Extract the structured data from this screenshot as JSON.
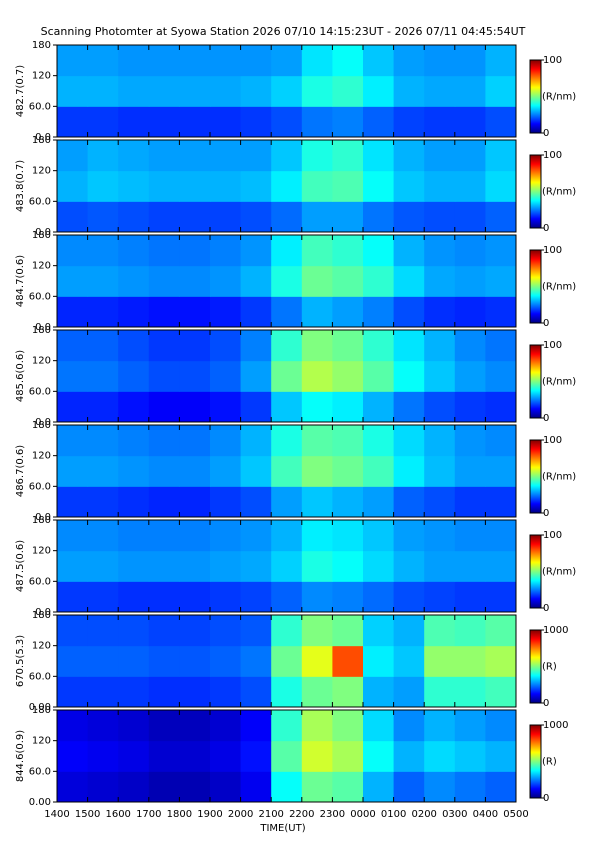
{
  "title": "Scanning Photomter at Syowa Station 2026 07/10 14:15:23UT - 2026 07/11 04:45:54UT",
  "xlabel": "TIME(UT)",
  "xlim": [
    14,
    29
  ],
  "x_bins": [
    14,
    15,
    16,
    17,
    18,
    19,
    20,
    21,
    22,
    23,
    24,
    25,
    26,
    27,
    28,
    29
  ],
  "xticks": [
    {
      "value": 14,
      "label": "1400"
    },
    {
      "value": 15,
      "label": "1500"
    },
    {
      "value": 16,
      "label": "1600"
    },
    {
      "value": 17,
      "label": "1700"
    },
    {
      "value": 18,
      "label": "1800"
    },
    {
      "value": 19,
      "label": "1900"
    },
    {
      "value": 20,
      "label": "2000"
    },
    {
      "value": 21,
      "label": "2100"
    },
    {
      "value": 22,
      "label": "2200"
    },
    {
      "value": 23,
      "label": "2300"
    },
    {
      "value": 24,
      "label": "0000"
    },
    {
      "value": 25,
      "label": "0100"
    },
    {
      "value": 26,
      "label": "0200"
    },
    {
      "value": 27,
      "label": "0300"
    },
    {
      "value": 28,
      "label": "0400"
    },
    {
      "value": 29,
      "label": "0500"
    }
  ],
  "chart_data": [
    {
      "type": "heatmap",
      "ylabel": "482.7(0.7)",
      "ylim": [
        0,
        180
      ],
      "y_bins": [
        0,
        60,
        120,
        180
      ],
      "yticks": [
        {
          "value": 0,
          "label": "0.0"
        },
        {
          "value": 60,
          "label": "60.0"
        },
        120,
        180
      ],
      "clim": [
        0,
        100
      ],
      "cticks": [
        0,
        100
      ],
      "cbar_label": "(R/nm)",
      "values": [
        [
          18,
          18,
          17,
          17,
          17,
          17,
          18,
          20,
          24,
          25,
          22,
          19,
          18,
          18,
          20
        ],
        [
          30,
          30,
          29,
          29,
          29,
          29,
          30,
          33,
          40,
          42,
          36,
          30,
          29,
          29,
          33
        ],
        [
          28,
          28,
          27,
          27,
          27,
          27,
          27,
          28,
          35,
          38,
          32,
          28,
          27,
          27,
          30
        ]
      ]
    },
    {
      "type": "heatmap",
      "ylabel": "483.8(0.7)",
      "ylim": [
        0,
        180
      ],
      "y_bins": [
        0,
        60,
        120,
        180
      ],
      "yticks": [
        {
          "value": 0,
          "label": "0.0"
        },
        {
          "value": 60,
          "label": "60.0"
        },
        120,
        180
      ],
      "clim": [
        0,
        100
      ],
      "cticks": [
        0,
        100
      ],
      "cbar_label": "(R/nm)",
      "values": [
        [
          20,
          21,
          20,
          19,
          19,
          19,
          20,
          23,
          28,
          28,
          24,
          21,
          20,
          20,
          22
        ],
        [
          30,
          32,
          31,
          30,
          30,
          30,
          31,
          36,
          44,
          45,
          38,
          32,
          30,
          30,
          34
        ],
        [
          28,
          30,
          29,
          28,
          28,
          28,
          28,
          32,
          40,
          42,
          35,
          30,
          28,
          28,
          32
        ]
      ]
    },
    {
      "type": "heatmap",
      "ylabel": "484.7(0.6)",
      "ylim": [
        0,
        180
      ],
      "y_bins": [
        0,
        60,
        120,
        180
      ],
      "yticks": [
        {
          "value": 0,
          "label": "0.0"
        },
        {
          "value": 60,
          "label": "60.0"
        },
        120,
        180
      ],
      "clim": [
        0,
        100
      ],
      "cticks": [
        0,
        100
      ],
      "cbar_label": "(R/nm)",
      "values": [
        [
          16,
          16,
          15,
          14,
          14,
          15,
          18,
          24,
          30,
          28,
          25,
          20,
          17,
          16,
          17
        ],
        [
          28,
          28,
          27,
          26,
          26,
          27,
          30,
          40,
          48,
          46,
          42,
          34,
          29,
          28,
          29
        ],
        [
          26,
          26,
          25,
          24,
          24,
          25,
          27,
          36,
          44,
          42,
          38,
          30,
          27,
          26,
          27
        ]
      ]
    },
    {
      "type": "heatmap",
      "ylabel": "485.6(0.6)",
      "ylim": [
        0,
        180
      ],
      "y_bins": [
        0,
        60,
        120,
        180
      ],
      "yticks": [
        {
          "value": 0,
          "label": "0.0"
        },
        {
          "value": 60,
          "label": "60.0"
        },
        120,
        180
      ],
      "clim": [
        0,
        100
      ],
      "cticks": [
        0,
        100
      ],
      "cbar_label": "(R/nm)",
      "values": [
        [
          16,
          16,
          14,
          12,
          12,
          14,
          18,
          32,
          38,
          36,
          30,
          24,
          20,
          18,
          17
        ],
        [
          24,
          24,
          22,
          20,
          20,
          22,
          28,
          48,
          55,
          52,
          46,
          38,
          32,
          28,
          26
        ],
        [
          22,
          22,
          20,
          18,
          18,
          20,
          25,
          42,
          50,
          48,
          42,
          35,
          30,
          26,
          24
        ]
      ]
    },
    {
      "type": "heatmap",
      "ylabel": "486.7(0.6)",
      "ylim": [
        0,
        180
      ],
      "y_bins": [
        0,
        60,
        120,
        180
      ],
      "yticks": [
        {
          "value": 0,
          "label": "0.0"
        },
        {
          "value": 60,
          "label": "60.0"
        },
        120,
        180
      ],
      "clim": [
        0,
        100
      ],
      "cticks": [
        0,
        100
      ],
      "cbar_label": "(R/nm)",
      "values": [
        [
          18,
          18,
          17,
          16,
          16,
          18,
          20,
          28,
          32,
          30,
          28,
          22,
          20,
          18,
          18
        ],
        [
          28,
          28,
          27,
          26,
          26,
          28,
          32,
          44,
          50,
          48,
          44,
          36,
          31,
          28,
          28
        ],
        [
          26,
          26,
          25,
          24,
          24,
          26,
          30,
          40,
          46,
          45,
          40,
          34,
          30,
          27,
          26
        ]
      ]
    },
    {
      "type": "heatmap",
      "ylabel": "487.5(0.6)",
      "ylim": [
        0,
        180
      ],
      "y_bins": [
        0,
        60,
        120,
        180
      ],
      "yticks": [
        {
          "value": 0,
          "label": "0.0"
        },
        {
          "value": 60,
          "label": "60.0"
        },
        120,
        180
      ],
      "clim": [
        0,
        100
      ],
      "cticks": [
        0,
        100
      ],
      "cbar_label": "(R/nm)",
      "values": [
        [
          18,
          18,
          17,
          17,
          17,
          18,
          19,
          22,
          26,
          25,
          23,
          20,
          19,
          18,
          18
        ],
        [
          28,
          28,
          27,
          27,
          27,
          28,
          29,
          33,
          40,
          38,
          34,
          30,
          28,
          28,
          28
        ],
        [
          26,
          26,
          25,
          25,
          25,
          26,
          27,
          30,
          36,
          35,
          32,
          28,
          27,
          26,
          26
        ]
      ]
    },
    {
      "type": "heatmap",
      "ylabel": "670.5(5.3)",
      "ylim": [
        0,
        180
      ],
      "y_bins": [
        0,
        60,
        120,
        180
      ],
      "yticks": [
        {
          "value": 0,
          "label": "0.00"
        },
        {
          "value": 60,
          "label": "60.0"
        },
        120,
        180
      ],
      "clim": [
        0,
        1000
      ],
      "cticks": [
        0,
        1000
      ],
      "cbar_label": "(R)",
      "values": [
        [
          180,
          180,
          180,
          170,
          170,
          180,
          200,
          400,
          480,
          500,
          300,
          280,
          420,
          420,
          440
        ],
        [
          220,
          220,
          220,
          210,
          210,
          220,
          240,
          480,
          600,
          800,
          360,
          320,
          520,
          520,
          540
        ],
        [
          200,
          200,
          200,
          190,
          190,
          200,
          210,
          420,
          500,
          480,
          330,
          300,
          450,
          440,
          460
        ]
      ]
    },
    {
      "type": "heatmap",
      "ylabel": "844.6(0.9)",
      "ylim": [
        0,
        180
      ],
      "y_bins": [
        0,
        60,
        120,
        180
      ],
      "yticks": [
        {
          "value": 0,
          "label": "0.00"
        },
        {
          "value": 60,
          "label": "60.0"
        },
        120,
        180
      ],
      "clim": [
        0,
        1000
      ],
      "cticks": [
        0,
        1000
      ],
      "cbar_label": "(R)",
      "values": [
        [
          90,
          80,
          70,
          50,
          50,
          70,
          110,
          380,
          480,
          460,
          300,
          220,
          260,
          240,
          220
        ],
        [
          120,
          110,
          100,
          80,
          80,
          100,
          140,
          460,
          580,
          540,
          380,
          300,
          340,
          320,
          300
        ],
        [
          100,
          90,
          80,
          60,
          60,
          80,
          120,
          420,
          540,
          500,
          340,
          260,
          300,
          280,
          260
        ]
      ]
    }
  ]
}
